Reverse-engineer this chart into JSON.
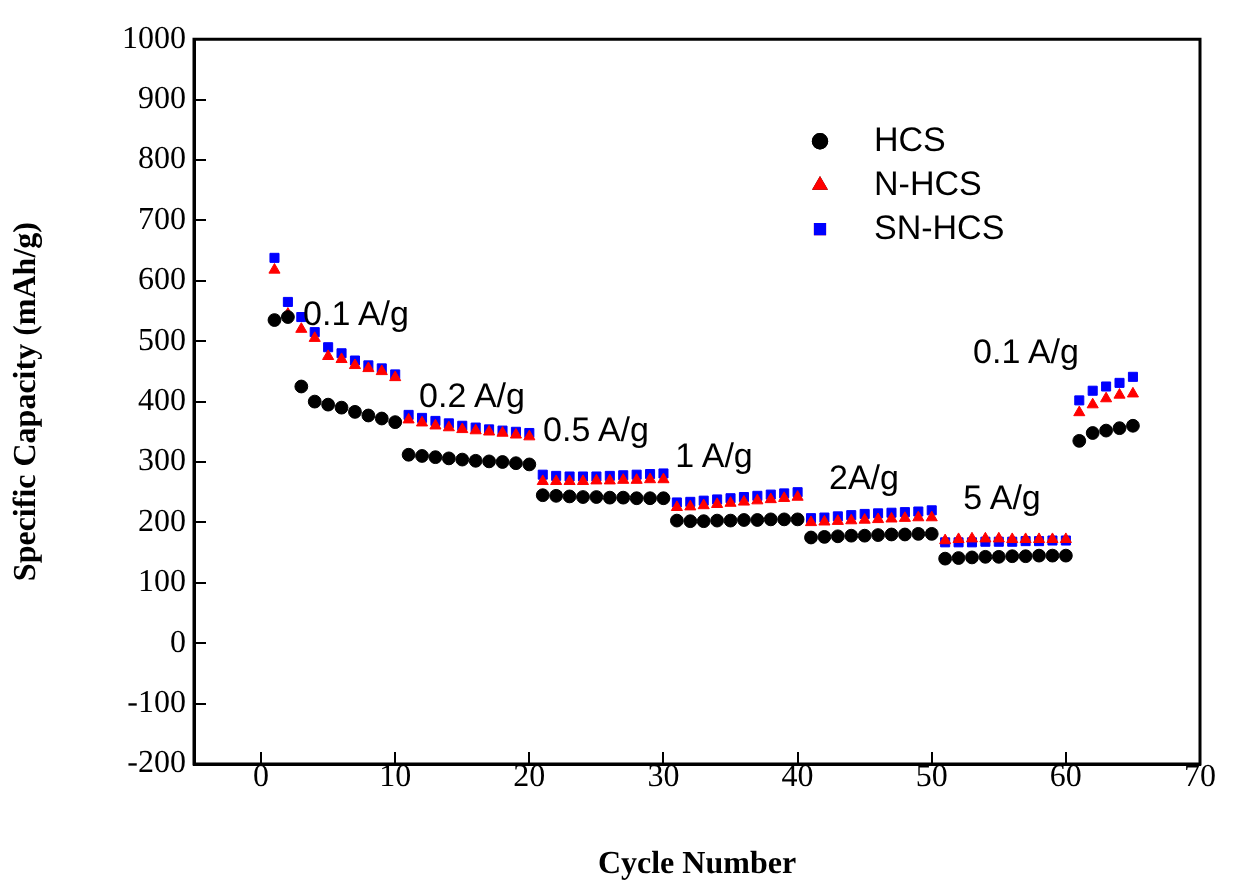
{
  "chart_data": {
    "type": "scatter",
    "xlabel": "Cycle Number",
    "ylabel": "Specific Capacity (mAh/g)",
    "x": [
      1,
      2,
      3,
      4,
      5,
      6,
      7,
      8,
      9,
      10,
      11,
      12,
      13,
      14,
      15,
      16,
      17,
      18,
      19,
      20,
      21,
      22,
      23,
      24,
      25,
      26,
      27,
      28,
      29,
      30,
      31,
      32,
      33,
      34,
      35,
      36,
      37,
      38,
      39,
      40,
      41,
      42,
      43,
      44,
      45,
      46,
      47,
      48,
      49,
      50,
      51,
      52,
      53,
      54,
      55,
      56,
      57,
      58,
      59,
      60,
      61,
      62,
      63,
      64,
      65
    ],
    "series": [
      {
        "name": "HCS",
        "color": "#000000",
        "marker": "circle",
        "values": [
          535,
          540,
          425,
          400,
          395,
          390,
          383,
          377,
          372,
          366,
          312,
          310,
          308,
          306,
          304,
          302,
          301,
          300,
          298,
          296,
          245,
          244,
          243,
          242,
          242,
          241,
          241,
          240,
          240,
          240,
          203,
          202,
          202,
          203,
          203,
          204,
          204,
          205,
          205,
          205,
          175,
          176,
          177,
          178,
          178,
          179,
          180,
          180,
          181,
          181,
          140,
          141,
          142,
          143,
          143,
          144,
          144,
          145,
          145,
          145,
          335,
          348,
          352,
          356,
          360
        ]
      },
      {
        "name": "N-HCS",
        "color": "#ff0000",
        "marker": "triangle",
        "values": [
          618,
          545,
          520,
          505,
          475,
          470,
          460,
          455,
          450,
          440,
          370,
          365,
          360,
          357,
          354,
          352,
          350,
          348,
          345,
          342,
          268,
          268,
          268,
          268,
          269,
          269,
          270,
          270,
          271,
          271,
          225,
          226,
          228,
          230,
          232,
          234,
          236,
          238,
          240,
          242,
          200,
          201,
          202,
          203,
          204,
          205,
          206,
          207,
          208,
          208,
          170,
          172,
          173,
          173,
          173,
          172,
          172,
          172,
          172,
          172,
          382,
          395,
          405,
          411,
          413
        ]
      },
      {
        "name": "SN-HCS",
        "color": "#0000ff",
        "marker": "square",
        "values": [
          638,
          565,
          540,
          515,
          490,
          480,
          468,
          460,
          455,
          445,
          378,
          373,
          368,
          364,
          360,
          357,
          354,
          352,
          350,
          348,
          279,
          277,
          276,
          276,
          276,
          277,
          278,
          279,
          280,
          281,
          233,
          234,
          236,
          238,
          240,
          242,
          244,
          246,
          248,
          250,
          207,
          208,
          210,
          212,
          214,
          215,
          216,
          217,
          218,
          220,
          167,
          167,
          167,
          168,
          168,
          168,
          169,
          169,
          170,
          170,
          402,
          418,
          425,
          431,
          441
        ]
      }
    ],
    "xlim": [
      -5,
      70
    ],
    "xticks": [
      0,
      10,
      20,
      30,
      40,
      50,
      60,
      70
    ],
    "ylim": [
      -200,
      1000
    ],
    "yticks": [
      -200,
      -100,
      0,
      100,
      200,
      300,
      400,
      500,
      600,
      700,
      800,
      900,
      1000
    ],
    "grid": false,
    "legend": "top right",
    "annotations": [
      "0.1 A/g",
      "0.2 A/g",
      "0.5 A/g",
      "1 A/g",
      "2A/g",
      "5 A/g",
      "0.1 A/g"
    ]
  }
}
